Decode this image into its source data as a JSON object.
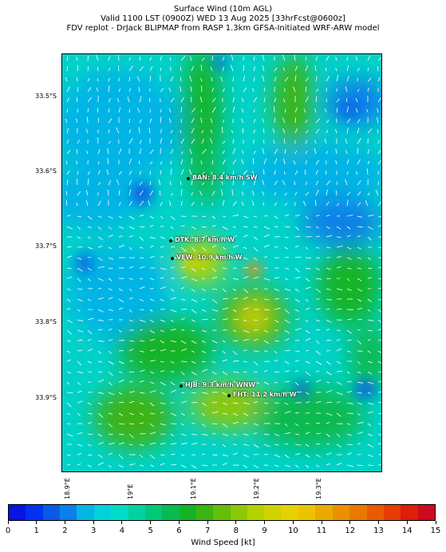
{
  "header": {
    "line1": "Surface Wind (10m AGL)",
    "line2": "Valid 1100 LST (0900Z) WED 13 Aug 2025 [33hrFcst@0600z]",
    "line3": "FDV replot - DrJack BLIPMAP from RASP 1.3km GFSA-Initiated WRF-ARW model"
  },
  "lat_labels": [
    "33.5°S",
    "33.6°S",
    "33.7°S",
    "33.8°S",
    "33.9°S"
  ],
  "lon_labels": [
    "18.9°E",
    "19°E",
    "19.1°E",
    "19.2°E",
    "19.3°E"
  ],
  "stations": [
    {
      "label": "BAN: 8.4 km/h SW"
    },
    {
      "label": "DTK: 8.7 km/h W"
    },
    {
      "label": "VEW: 10.9 km/h W"
    },
    {
      "label": "HJB: 9.3 km/h WNW"
    },
    {
      "label": "FHT: 11.2 km/h W"
    }
  ],
  "colorbar": {
    "label": "Wind Speed [kt]",
    "ticks": [
      "0",
      "1",
      "2",
      "3",
      "4",
      "5",
      "6",
      "7",
      "8",
      "9",
      "10",
      "11",
      "12",
      "13",
      "14",
      "15"
    ],
    "colors": [
      "#0a14e0",
      "#0032f0",
      "#0a5ae6",
      "#0a80e8",
      "#06b4e6",
      "#00d2dc",
      "#00dcc8",
      "#00d2a0",
      "#00c878",
      "#0aba50",
      "#14b428",
      "#3cb414",
      "#64be0a",
      "#8cc80a",
      "#b4d200",
      "#d2d200",
      "#e6d200",
      "#ebc300",
      "#ebaa00",
      "#eb9100",
      "#eb7800",
      "#eb5a00",
      "#e63c00",
      "#dc1e0a",
      "#cd0a1e"
    ]
  }
}
